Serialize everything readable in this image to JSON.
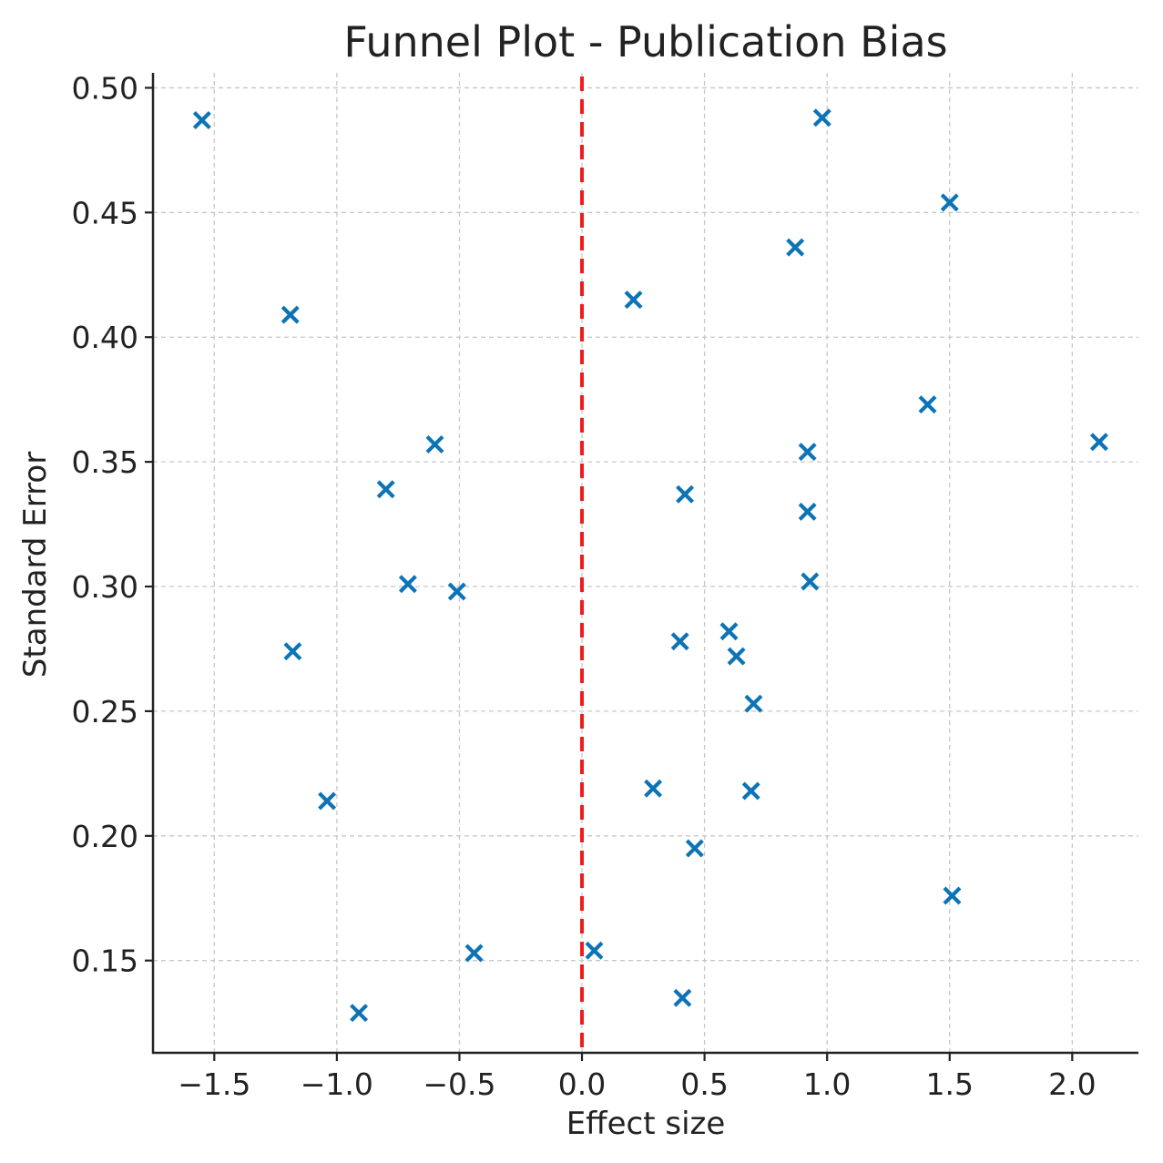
{
  "chart_data": {
    "type": "scatter",
    "title": "Funnel Plot - Publication Bias",
    "xlabel": "Effect size",
    "ylabel": "Standard Error",
    "xlim": [
      -1.75,
      2.27
    ],
    "ylim": [
      0.113,
      0.506
    ],
    "xticks": [
      -1.5,
      -1.0,
      -0.5,
      0.0,
      0.5,
      1.0,
      1.5,
      2.0
    ],
    "xtick_labels": [
      "−1.5",
      "−1.0",
      "−0.5",
      "0.0",
      "0.5",
      "1.0",
      "1.5",
      "2.0"
    ],
    "yticks": [
      0.15,
      0.2,
      0.25,
      0.3,
      0.35,
      0.4,
      0.45,
      0.5
    ],
    "ytick_labels": [
      "0.15",
      "0.20",
      "0.25",
      "0.30",
      "0.35",
      "0.40",
      "0.45",
      "0.50"
    ],
    "grid": true,
    "marker": "x",
    "marker_color": "#0C74B6",
    "reference_line": {
      "x": 0.0,
      "color": "#ee1c1c",
      "style": "dashed"
    },
    "points": [
      {
        "x": -1.55,
        "y": 0.487
      },
      {
        "x": 0.98,
        "y": 0.488
      },
      {
        "x": 1.5,
        "y": 0.454
      },
      {
        "x": 0.87,
        "y": 0.436
      },
      {
        "x": 0.21,
        "y": 0.415
      },
      {
        "x": -1.19,
        "y": 0.409
      },
      {
        "x": 1.41,
        "y": 0.373
      },
      {
        "x": 2.11,
        "y": 0.358
      },
      {
        "x": -0.6,
        "y": 0.357
      },
      {
        "x": 0.92,
        "y": 0.354
      },
      {
        "x": -0.8,
        "y": 0.339
      },
      {
        "x": 0.42,
        "y": 0.337
      },
      {
        "x": 0.92,
        "y": 0.33
      },
      {
        "x": 0.93,
        "y": 0.302
      },
      {
        "x": -0.71,
        "y": 0.301
      },
      {
        "x": -0.51,
        "y": 0.298
      },
      {
        "x": 0.6,
        "y": 0.282
      },
      {
        "x": 0.4,
        "y": 0.278
      },
      {
        "x": 0.63,
        "y": 0.272
      },
      {
        "x": -1.18,
        "y": 0.274
      },
      {
        "x": 0.7,
        "y": 0.253
      },
      {
        "x": 0.29,
        "y": 0.219
      },
      {
        "x": 0.69,
        "y": 0.218
      },
      {
        "x": -1.04,
        "y": 0.214
      },
      {
        "x": 0.46,
        "y": 0.195
      },
      {
        "x": 1.51,
        "y": 0.176
      },
      {
        "x": 0.05,
        "y": 0.154
      },
      {
        "x": -0.44,
        "y": 0.153
      },
      {
        "x": 0.41,
        "y": 0.135
      },
      {
        "x": -0.91,
        "y": 0.129
      }
    ]
  }
}
